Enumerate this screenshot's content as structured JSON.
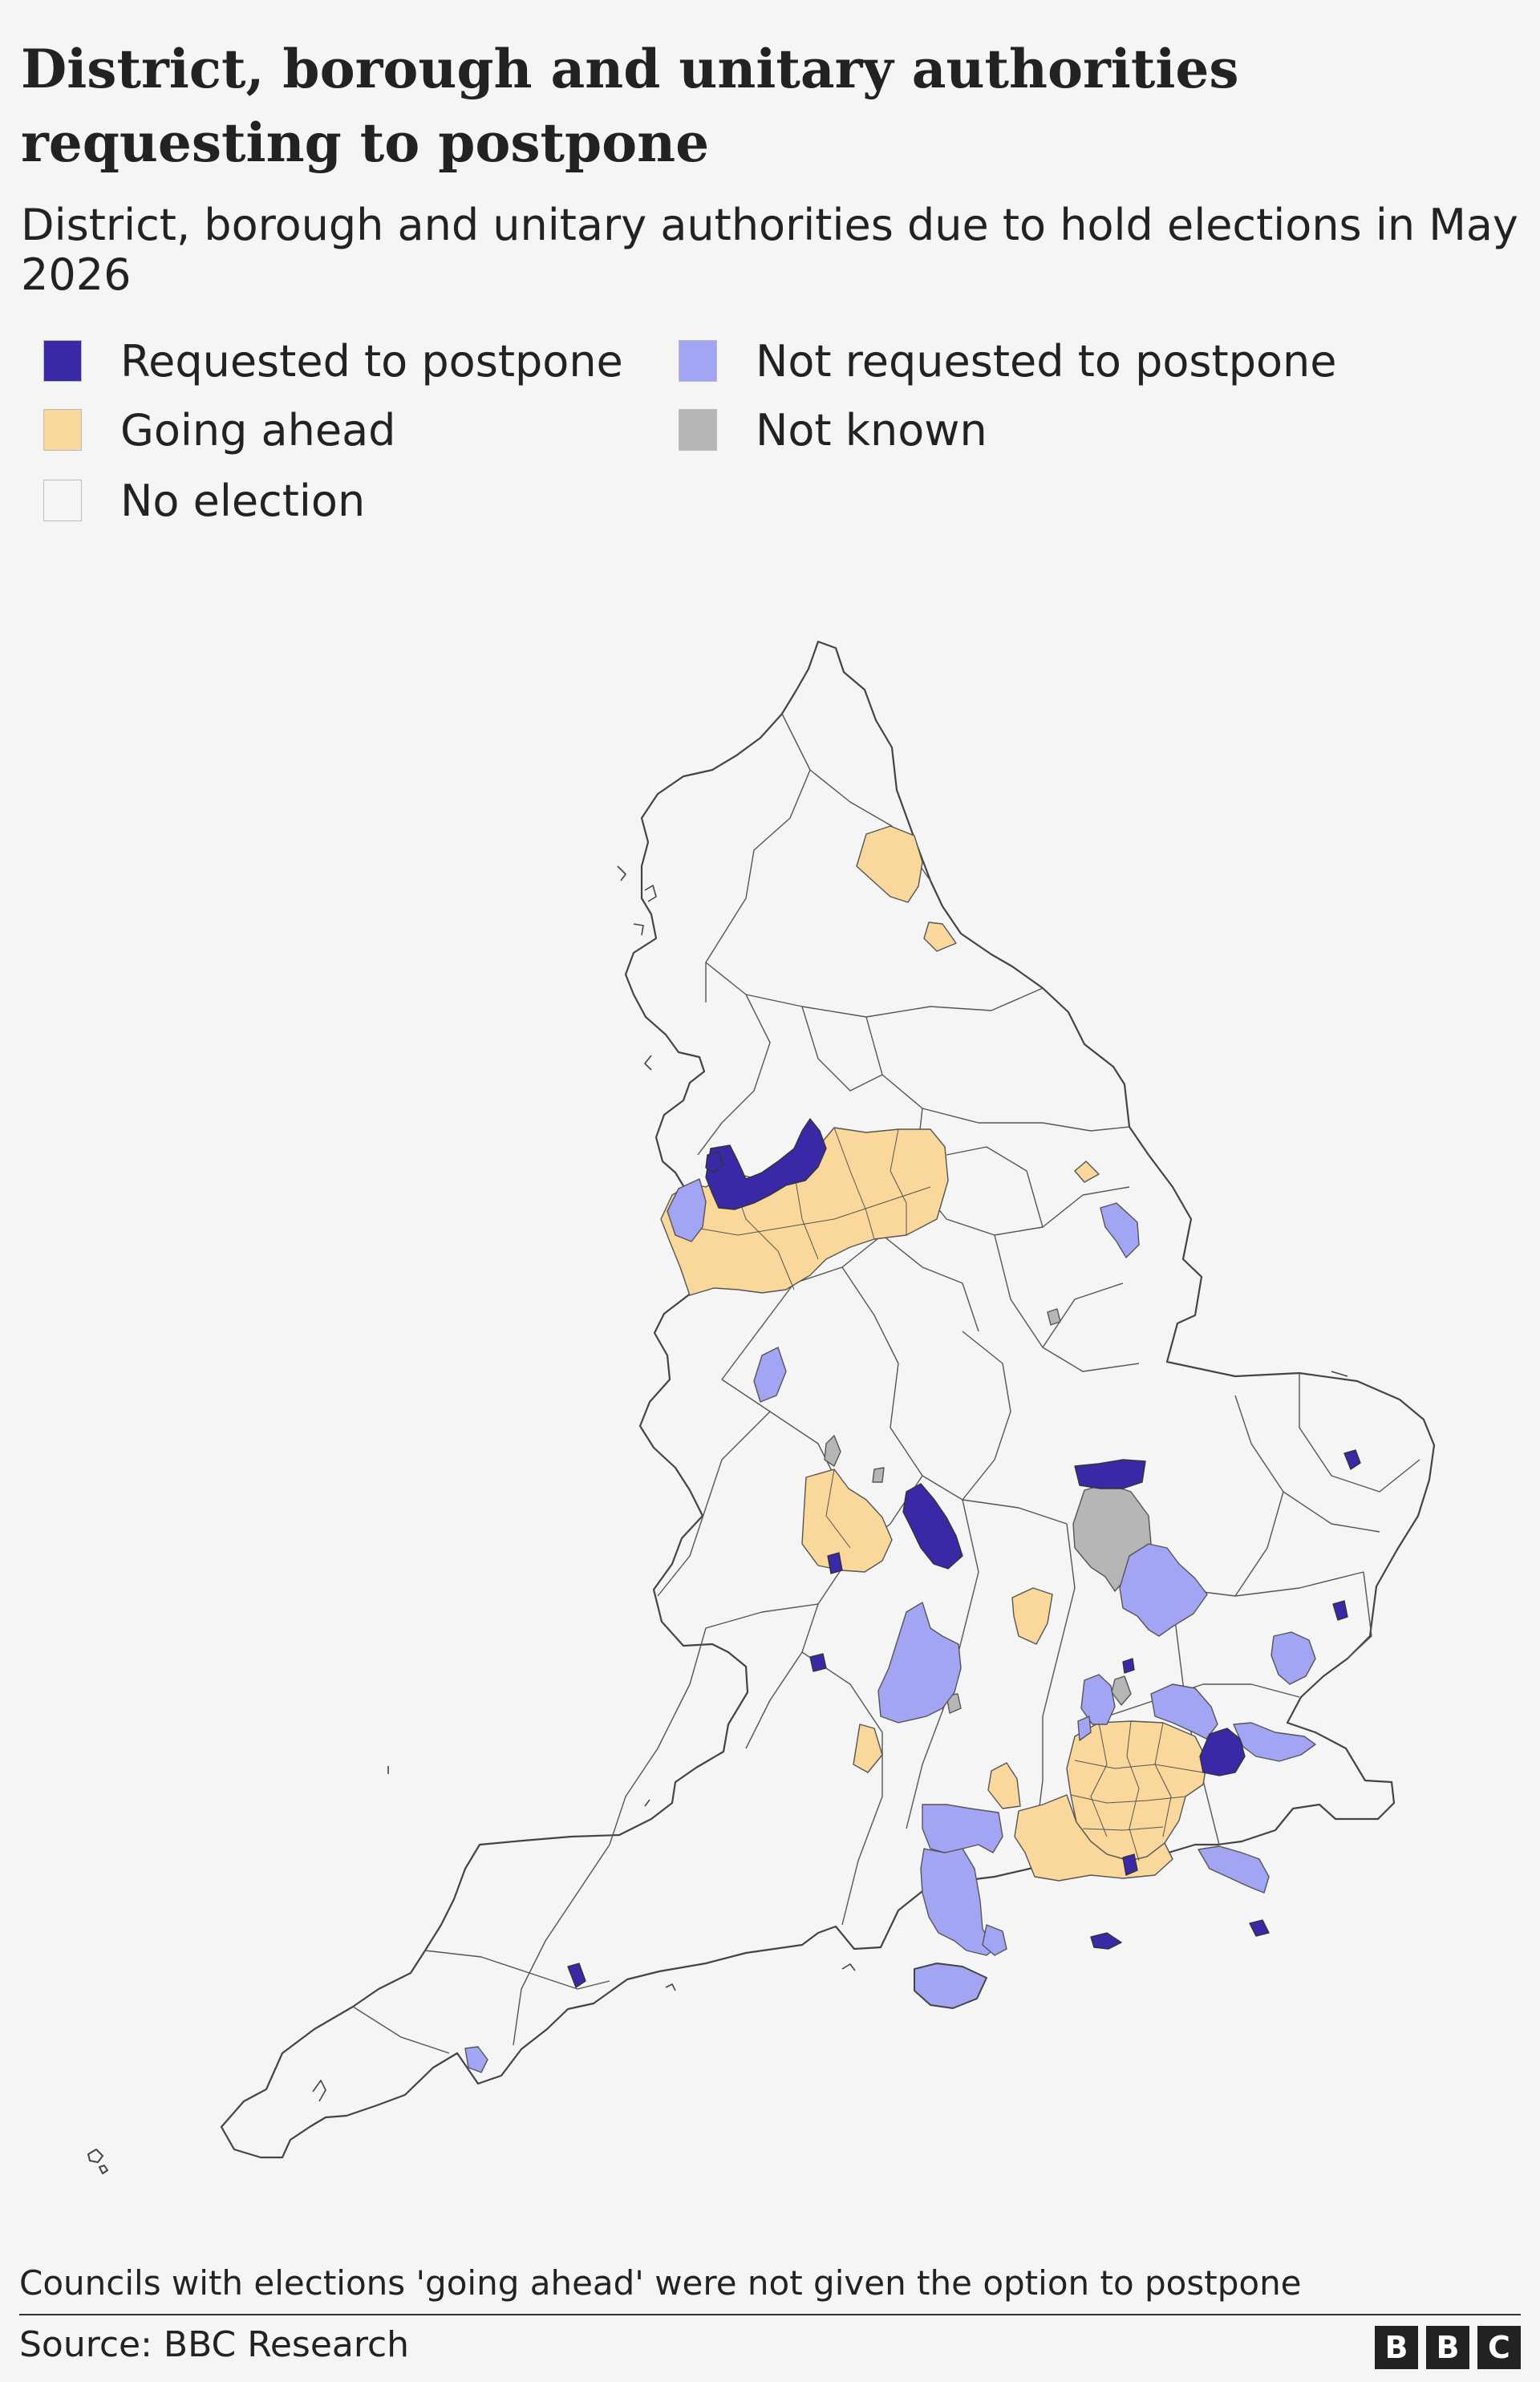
{
  "title": "District, borough and unitary authorities requesting to postpone",
  "subtitle": "District, borough and unitary authorities due to hold elections in May 2026",
  "legend": [
    {
      "label": "Requested to postpone",
      "color": "#3a29a6"
    },
    {
      "label": "Not requested to postpone",
      "color": "#a2a4f4"
    },
    {
      "label": "Going ahead",
      "color": "#fad79b"
    },
    {
      "label": "Not known",
      "color": "#b6b6b6"
    },
    {
      "label": "No election",
      "color": "#f5f5f5"
    }
  ],
  "footnote": "Councils with elections 'going ahead' were not given the option to postpone",
  "source": "Source: BBC Research",
  "logo": [
    "B",
    "B",
    "C"
  ]
}
